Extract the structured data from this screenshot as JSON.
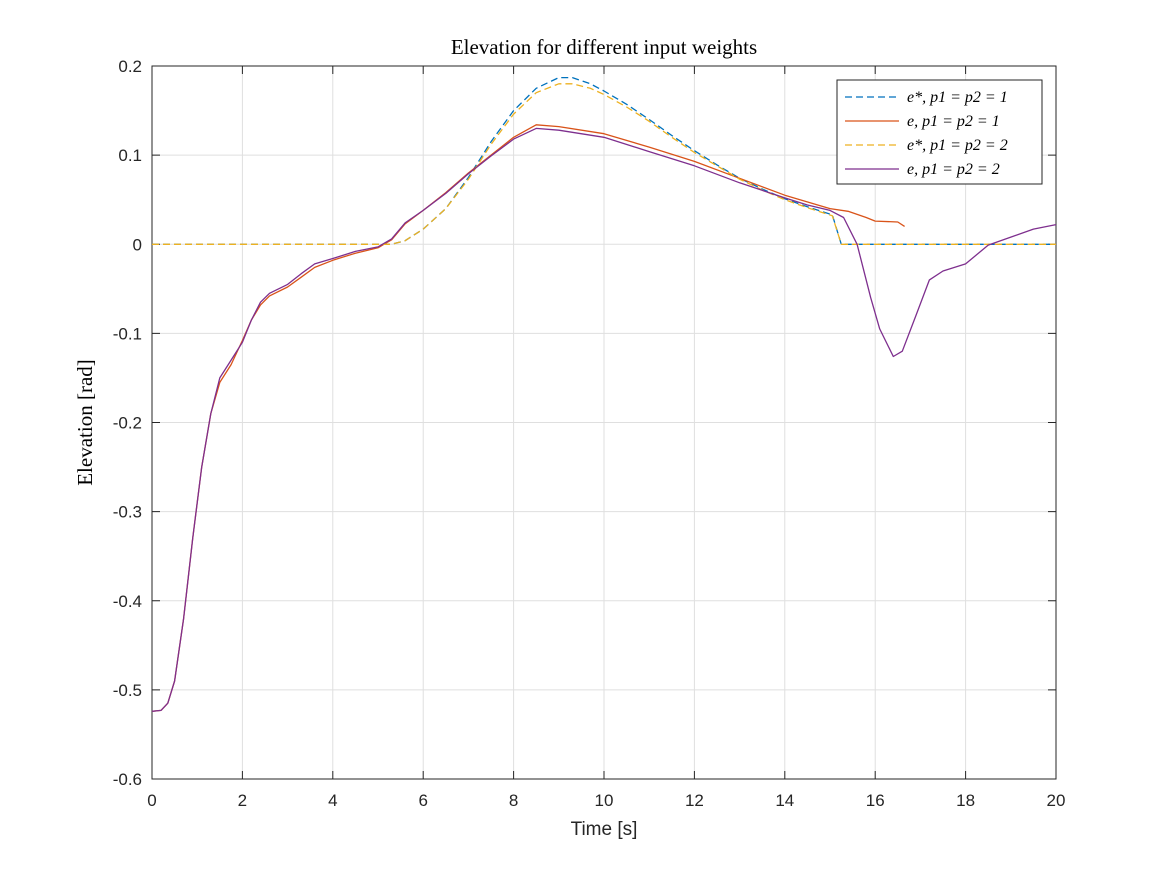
{
  "chart_data": {
    "type": "line",
    "title": "Elevation for different input weights",
    "xlabel": "Time [s]",
    "ylabel": "Elevation [rad]",
    "xlim": [
      0,
      20
    ],
    "ylim": [
      -0.6,
      0.2
    ],
    "x_ticks": [
      "0",
      "2",
      "4",
      "6",
      "8",
      "10",
      "12",
      "14",
      "16",
      "18",
      "20"
    ],
    "y_ticks": [
      "0.2",
      "0.1",
      "0",
      "-0.1",
      "-0.2",
      "-0.3",
      "-0.4",
      "-0.5",
      "-0.6"
    ],
    "grid": true,
    "legend_position": "top-right",
    "series": [
      {
        "name": "e*, p1 = p2 = 1",
        "style": "dashed",
        "color": "#0072BD",
        "points": [
          [
            0,
            0
          ],
          [
            5.3,
            0
          ],
          [
            5.6,
            0.004
          ],
          [
            6,
            0.017
          ],
          [
            6.5,
            0.04
          ],
          [
            7,
            0.075
          ],
          [
            7.5,
            0.115
          ],
          [
            8,
            0.15
          ],
          [
            8.5,
            0.175
          ],
          [
            9,
            0.187
          ],
          [
            9.3,
            0.187
          ],
          [
            9.7,
            0.18
          ],
          [
            10,
            0.172
          ],
          [
            10.5,
            0.157
          ],
          [
            11,
            0.14
          ],
          [
            11.5,
            0.122
          ],
          [
            12,
            0.105
          ],
          [
            12.5,
            0.089
          ],
          [
            13,
            0.074
          ],
          [
            13.5,
            0.062
          ],
          [
            14,
            0.051
          ],
          [
            14.5,
            0.042
          ],
          [
            15.05,
            0.033
          ],
          [
            15.25,
            0
          ],
          [
            20,
            0
          ]
        ]
      },
      {
        "name": "e, p1 = p2 = 1",
        "style": "solid",
        "color": "#D95319",
        "points": [
          [
            0,
            -0.524
          ],
          [
            0.2,
            -0.523
          ],
          [
            0.35,
            -0.515
          ],
          [
            0.5,
            -0.49
          ],
          [
            0.7,
            -0.42
          ],
          [
            0.9,
            -0.33
          ],
          [
            1.1,
            -0.25
          ],
          [
            1.3,
            -0.19
          ],
          [
            1.5,
            -0.155
          ],
          [
            1.75,
            -0.135
          ],
          [
            2,
            -0.108
          ],
          [
            2.2,
            -0.085
          ],
          [
            2.4,
            -0.068
          ],
          [
            2.6,
            -0.058
          ],
          [
            3,
            -0.048
          ],
          [
            3.3,
            -0.037
          ],
          [
            3.6,
            -0.026
          ],
          [
            4,
            -0.018
          ],
          [
            4.5,
            -0.01
          ],
          [
            5,
            -0.004
          ],
          [
            5.3,
            0.005
          ],
          [
            5.6,
            0.023
          ],
          [
            6,
            0.038
          ],
          [
            6.5,
            0.058
          ],
          [
            7,
            0.08
          ],
          [
            7.5,
            0.1
          ],
          [
            8,
            0.12
          ],
          [
            8.5,
            0.134
          ],
          [
            9,
            0.132
          ],
          [
            10,
            0.124
          ],
          [
            11,
            0.109
          ],
          [
            12,
            0.093
          ],
          [
            13,
            0.074
          ],
          [
            14,
            0.055
          ],
          [
            15,
            0.04
          ],
          [
            15.4,
            0.037
          ],
          [
            15.8,
            0.03
          ],
          [
            16,
            0.026
          ],
          [
            16.5,
            0.025
          ],
          [
            16.65,
            0.02
          ]
        ]
      },
      {
        "name": "e*, p1 = p2 = 2",
        "style": "dashed",
        "color": "#EDB120",
        "points": [
          [
            0,
            0
          ],
          [
            5.3,
            0
          ],
          [
            5.6,
            0.004
          ],
          [
            6,
            0.017
          ],
          [
            6.5,
            0.04
          ],
          [
            7,
            0.073
          ],
          [
            7.5,
            0.112
          ],
          [
            8,
            0.146
          ],
          [
            8.5,
            0.17
          ],
          [
            9,
            0.18
          ],
          [
            9.3,
            0.18
          ],
          [
            9.7,
            0.175
          ],
          [
            10,
            0.168
          ],
          [
            10.5,
            0.154
          ],
          [
            11,
            0.138
          ],
          [
            11.5,
            0.12
          ],
          [
            12,
            0.103
          ],
          [
            12.5,
            0.088
          ],
          [
            13,
            0.073
          ],
          [
            13.5,
            0.061
          ],
          [
            14,
            0.05
          ],
          [
            14.5,
            0.041
          ],
          [
            15.05,
            0.032
          ],
          [
            15.25,
            0
          ],
          [
            20,
            0
          ]
        ]
      },
      {
        "name": "e, p1 = p2 = 2",
        "style": "solid",
        "color": "#7E2F8E",
        "points": [
          [
            0,
            -0.524
          ],
          [
            0.2,
            -0.523
          ],
          [
            0.35,
            -0.515
          ],
          [
            0.5,
            -0.49
          ],
          [
            0.7,
            -0.42
          ],
          [
            0.9,
            -0.33
          ],
          [
            1.1,
            -0.25
          ],
          [
            1.3,
            -0.19
          ],
          [
            1.5,
            -0.15
          ],
          [
            1.75,
            -0.13
          ],
          [
            2,
            -0.11
          ],
          [
            2.2,
            -0.085
          ],
          [
            2.4,
            -0.065
          ],
          [
            2.6,
            -0.055
          ],
          [
            3,
            -0.045
          ],
          [
            3.3,
            -0.033
          ],
          [
            3.6,
            -0.022
          ],
          [
            4,
            -0.016
          ],
          [
            4.5,
            -0.008
          ],
          [
            5,
            -0.003
          ],
          [
            5.3,
            0.006
          ],
          [
            5.6,
            0.024
          ],
          [
            6,
            0.038
          ],
          [
            6.5,
            0.057
          ],
          [
            7,
            0.079
          ],
          [
            7.5,
            0.099
          ],
          [
            8,
            0.118
          ],
          [
            8.5,
            0.13
          ],
          [
            9,
            0.128
          ],
          [
            10,
            0.12
          ],
          [
            11,
            0.104
          ],
          [
            12,
            0.088
          ],
          [
            13,
            0.069
          ],
          [
            14,
            0.052
          ],
          [
            14.5,
            0.044
          ],
          [
            15,
            0.038
          ],
          [
            15.3,
            0.03
          ],
          [
            15.6,
            0
          ],
          [
            15.9,
            -0.06
          ],
          [
            16.1,
            -0.095
          ],
          [
            16.4,
            -0.126
          ],
          [
            16.6,
            -0.12
          ],
          [
            16.9,
            -0.08
          ],
          [
            17.2,
            -0.04
          ],
          [
            17.5,
            -0.03
          ],
          [
            18,
            -0.022
          ],
          [
            18.5,
            -0.001
          ],
          [
            19,
            0.008
          ],
          [
            19.5,
            0.017
          ],
          [
            20,
            0.022
          ]
        ]
      }
    ]
  }
}
